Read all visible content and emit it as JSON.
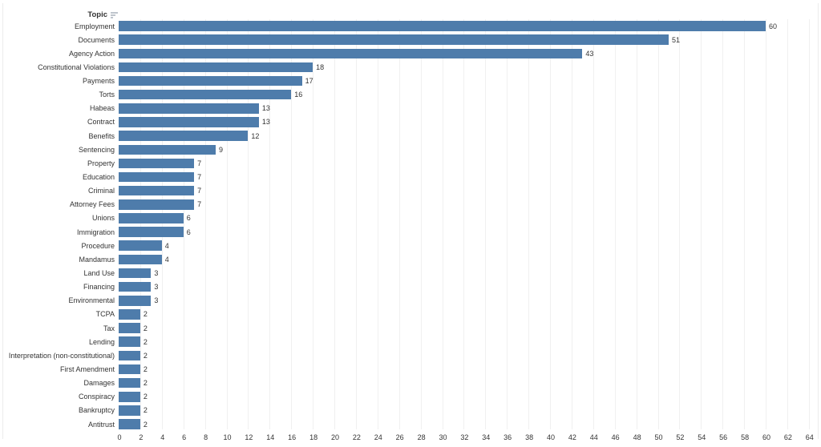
{
  "chart_data": {
    "type": "bar",
    "orientation": "horizontal",
    "title": "",
    "column_header": "Topic",
    "sort_indicator": "sort-descending-icon",
    "categories": [
      "Employment",
      "Documents",
      "Agency Action",
      "Constitutional Violations",
      "Payments",
      "Torts",
      "Habeas",
      "Contract",
      "Benefits",
      "Sentencing",
      "Property",
      "Education",
      "Criminal",
      "Attorney Fees",
      "Unions",
      "Immigration",
      "Procedure",
      "Mandamus",
      "Land Use",
      "Financing",
      "Environmental",
      "TCPA",
      "Tax",
      "Lending",
      "Interpretation (non-constitutional)",
      "First Amendment",
      "Damages",
      "Conspiracy",
      "Bankruptcy",
      "Antitrust"
    ],
    "values": [
      60,
      51,
      43,
      18,
      17,
      16,
      13,
      13,
      12,
      9,
      7,
      7,
      7,
      7,
      6,
      6,
      4,
      4,
      3,
      3,
      3,
      2,
      2,
      2,
      2,
      2,
      2,
      2,
      2,
      2
    ],
    "xlabel": "",
    "ylabel": "Topic",
    "xlim": [
      0,
      64
    ],
    "tick_step": 2,
    "x_ticks": [
      0,
      2,
      4,
      6,
      8,
      10,
      12,
      14,
      16,
      18,
      20,
      22,
      24,
      26,
      28,
      30,
      32,
      34,
      36,
      38,
      40,
      42,
      44,
      46,
      48,
      50,
      52,
      54,
      56,
      58,
      60,
      62,
      64
    ],
    "grid": true,
    "legend": "none",
    "value_labels_shown": true,
    "bar_color": "#4e7cab",
    "text_color": "#333333",
    "gridline_color": "#f0f0f0"
  }
}
